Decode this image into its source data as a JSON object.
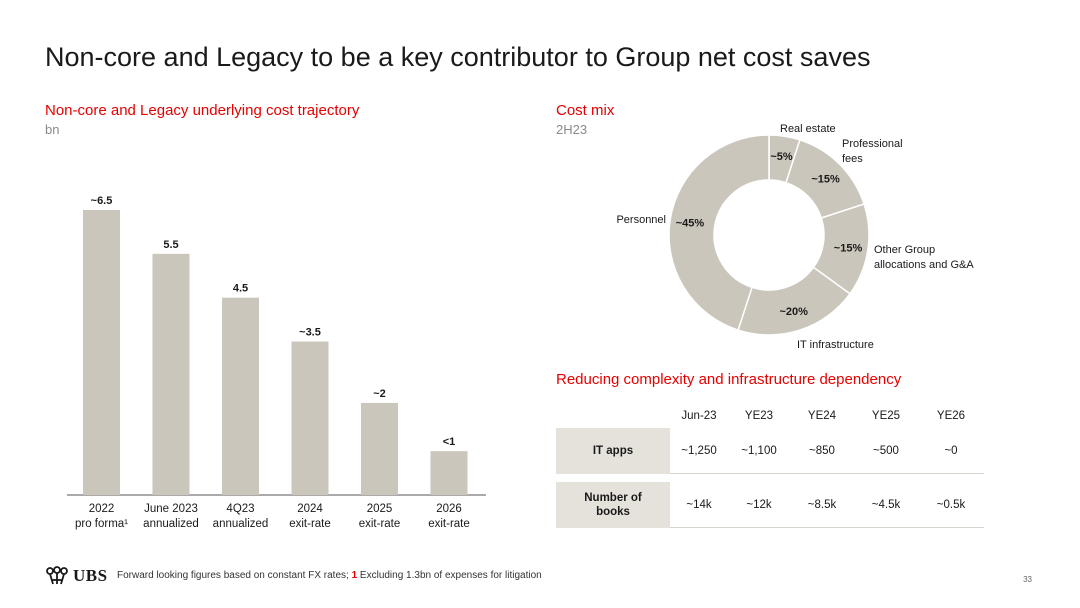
{
  "title": "Non-core and Legacy to be a key contributor to Group net cost saves",
  "left": {
    "heading": "Non-core and Legacy underlying cost trajectory",
    "unit": "bn"
  },
  "chart_data": [
    {
      "type": "bar",
      "title": "Non-core and Legacy underlying cost trajectory",
      "ylabel": "bn",
      "categories": [
        [
          "2022",
          "pro forma¹"
        ],
        [
          "June 2023",
          "annualized"
        ],
        [
          "4Q23",
          "annualized"
        ],
        [
          "2024",
          "exit-rate"
        ],
        [
          "2025",
          "exit-rate"
        ],
        [
          "2026",
          "exit-rate"
        ]
      ],
      "values": [
        6.5,
        5.5,
        4.5,
        3.5,
        2.1,
        1.0
      ],
      "labels": [
        "~6.5",
        "5.5",
        "4.5",
        "~3.5",
        "~2",
        "<1"
      ],
      "ylim": [
        0,
        7
      ],
      "grid": false,
      "color": "#cbc6bc"
    },
    {
      "type": "pie",
      "title": "Cost mix",
      "subtitle": "2H23",
      "slices": [
        {
          "name": "Real estate",
          "value": 5,
          "label": "~5%"
        },
        {
          "name": "Professional fees",
          "value": 15,
          "label": "~15%"
        },
        {
          "name": "Other Group allocations and G&A",
          "value": 15,
          "label": "~15%"
        },
        {
          "name": "IT infrastructure",
          "value": 20,
          "label": "~20%"
        },
        {
          "name": "Personnel",
          "value": 45,
          "label": "~45%"
        }
      ],
      "color": "#cbc6bc"
    }
  ],
  "cost_mix": {
    "heading": "Cost mix",
    "period": "2H23",
    "legend": {
      "real_estate": "Real estate",
      "prof_1": "Professional",
      "prof_2": "fees",
      "other_1": "Other Group",
      "other_2": "allocations and G&A",
      "it": "IT infrastructure",
      "personnel": "Personnel"
    }
  },
  "complexity": {
    "heading": "Reducing complexity and infrastructure dependency",
    "columns": [
      "Jun-23",
      "YE23",
      "YE24",
      "YE25",
      "YE26"
    ],
    "rows": [
      {
        "label_1": "IT apps",
        "label_2": "",
        "values": [
          "~1,250",
          "~1,100",
          "~850",
          "~500",
          "~0"
        ]
      },
      {
        "label_1": "Number of",
        "label_2": "books",
        "values": [
          "~14k",
          "~12k",
          "~8.5k",
          "~4.5k",
          "~0.5k"
        ]
      }
    ]
  },
  "footer": {
    "logo": "UBS",
    "note_a": "Forward looking figures based on constant FX rates;",
    "note_num": "1",
    "note_b": "Excluding 1.3bn of expenses for litigation",
    "page": "33"
  },
  "colors": {
    "accent": "#e60000",
    "bar": "#cbc6bc",
    "row_header": "#e5e2dc"
  }
}
